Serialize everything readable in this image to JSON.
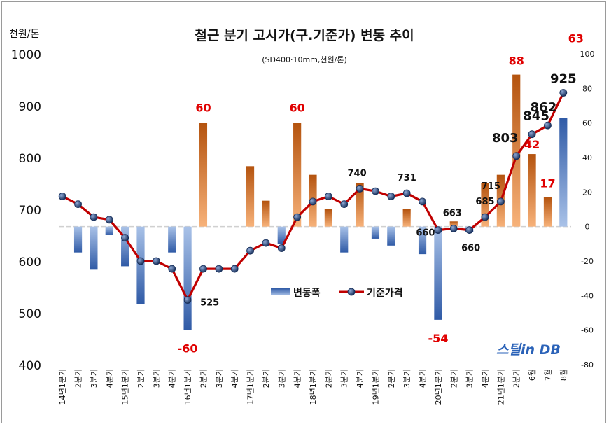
{
  "chart_data": {
    "type": "bar+line",
    "title": "철근 분기 고시가(구.기준가) 변동 추이",
    "subtitle": "(SD400·10mm,천원/톤)",
    "y_left_unit": "천원/톤",
    "y_left_range": [
      400,
      1000
    ],
    "y_left_ticks": [
      400,
      500,
      600,
      700,
      800,
      900,
      1000
    ],
    "y_right_range": [
      -80,
      100
    ],
    "y_right_ticks": [
      -80,
      -60,
      -40,
      -20,
      0,
      20,
      40,
      60,
      80,
      100
    ],
    "categories": [
      "14년1분기",
      "2분기",
      "3분기",
      "4분기",
      "15년1분기",
      "2분기",
      "3분기",
      "4분기",
      "16년1분기",
      "2분기",
      "3분기",
      "4분기",
      "17년1분기",
      "2분기",
      "3분기",
      "4분기",
      "18년1분기",
      "2분기",
      "3분기",
      "4분기",
      "19년1분기",
      "2분기",
      "3분기",
      "4분기",
      "20년1분기",
      "2분기",
      "3분기",
      "4분기",
      "21년1분기",
      "2분기",
      "6월",
      "7월",
      "8월"
    ],
    "series": [
      {
        "name": "변동폭",
        "type": "bar",
        "axis": "right",
        "values": [
          null,
          -15,
          -25,
          -5,
          -23,
          -45,
          null,
          -15,
          -60,
          60,
          null,
          null,
          35,
          15,
          -10,
          60,
          30,
          10,
          -15,
          25,
          -7,
          -11,
          10,
          -16,
          -54,
          3,
          -3,
          25,
          30,
          88,
          42,
          17,
          63
        ]
      },
      {
        "name": "기준가격",
        "type": "line",
        "axis": "left",
        "values": [
          725,
          710,
          685,
          680,
          645,
          600,
          600,
          585,
          525,
          585,
          585,
          585,
          620,
          635,
          625,
          685,
          715,
          725,
          710,
          740,
          735,
          725,
          731,
          715,
          660,
          663,
          660,
          685,
          715,
          803,
          845,
          862,
          925
        ]
      }
    ],
    "line_labels": [
      {
        "index": 8,
        "text": "525"
      },
      {
        "index": 19,
        "text": "740"
      },
      {
        "index": 22,
        "text": "731"
      },
      {
        "index": 24,
        "text": "660"
      },
      {
        "index": 25,
        "text": "663"
      },
      {
        "index": 26,
        "text": "660"
      },
      {
        "index": 27,
        "text": "685"
      },
      {
        "index": 28,
        "text": "715"
      },
      {
        "index": 29,
        "text": "803"
      },
      {
        "index": 30,
        "text": "845"
      },
      {
        "index": 31,
        "text": "862"
      },
      {
        "index": 32,
        "text": "925"
      }
    ],
    "bar_labels": [
      {
        "index": 8,
        "text": "-60"
      },
      {
        "index": 9,
        "text": "60"
      },
      {
        "index": 15,
        "text": "60"
      },
      {
        "index": 24,
        "text": "-54"
      },
      {
        "index": 29,
        "text": "88"
      },
      {
        "index": 30,
        "text": "42"
      },
      {
        "index": 31,
        "text": "17"
      },
      {
        "index": 32,
        "text": "63"
      }
    ],
    "legend_placement": "center",
    "colors": {
      "bar_up": "#c45a10",
      "bar_down": "#3d67b0",
      "line": "#c00000",
      "marker": "#1f3a6b",
      "label_red": "#e00000"
    }
  },
  "watermark": "스틸in DB"
}
